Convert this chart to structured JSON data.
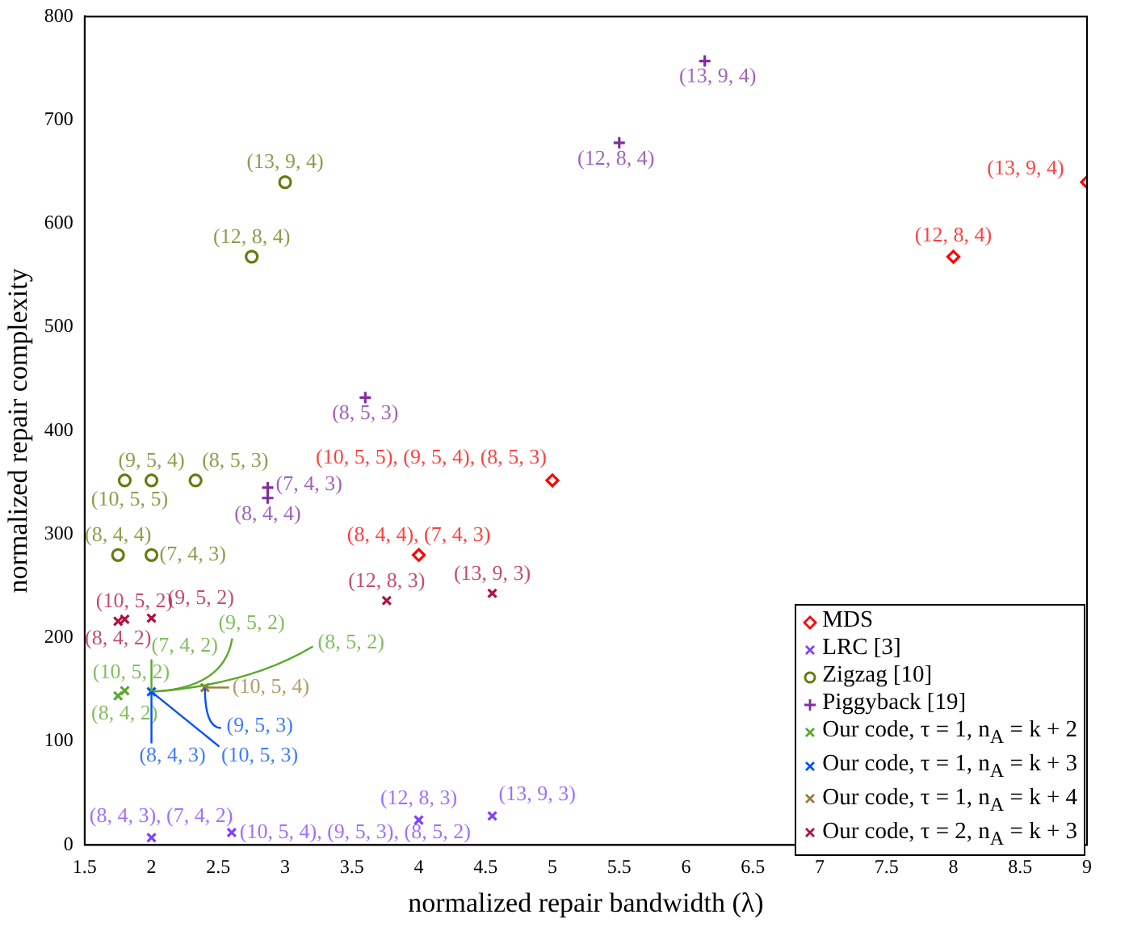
{
  "chart_data": {
    "type": "scatter",
    "xlabel": "normalized repair bandwidth (λ)",
    "ylabel": "normalized repair complexity",
    "xlim": [
      1.5,
      9
    ],
    "xticks": [
      1.5,
      2,
      2.5,
      3,
      3.5,
      4,
      4.5,
      5,
      5.5,
      6,
      6.5,
      7,
      7.5,
      8,
      8.5,
      9
    ],
    "ylim": [
      0,
      800
    ],
    "yticks": [
      0,
      100,
      200,
      300,
      400,
      500,
      600,
      700,
      800
    ],
    "grid": false,
    "legend": "bottom right",
    "series": [
      {
        "name": "MDS",
        "color": "#ff0000",
        "marker": "diamond",
        "x": [
          9,
          8,
          5,
          4
        ],
        "values": [
          640,
          568,
          352,
          280
        ]
      },
      {
        "name": "LRC [3]",
        "color": "#7f3fff",
        "marker": "cross",
        "x": [
          2,
          2.6,
          4,
          4.55
        ],
        "values": [
          7,
          12,
          24,
          28
        ]
      },
      {
        "name": "Zigzag [10]",
        "color": "#6b7a10",
        "marker": "circle",
        "x": [
          3,
          2.75,
          2,
          1.8,
          2.33,
          1.75,
          2
        ],
        "values": [
          640,
          568,
          352,
          352,
          352,
          280,
          280
        ]
      },
      {
        "name": "Piggyback [19]",
        "color": "#7f2f9f",
        "marker": "plus",
        "x": [
          6.14,
          5.5,
          3.6,
          2.87,
          2.87
        ],
        "values": [
          757,
          678,
          432,
          345,
          335
        ]
      },
      {
        "name": "Our code, τ = 1, n$_{A}$ = k + 2",
        "color": "#5aa82a",
        "marker": "cross",
        "x": [
          1.8,
          1.75
        ],
        "values": [
          149,
          144
        ]
      },
      {
        "name": "Our code, τ = 1, n$_{A}$ = k + 3",
        "color": "#0050ff",
        "marker": "cross",
        "x": [
          2
        ],
        "values": [
          148
        ]
      },
      {
        "name": "Our code, τ = 1, n$_{A}$ = k + 4",
        "color": "#9a7a3a",
        "marker": "cross",
        "x": [
          2.4
        ],
        "values": [
          152
        ]
      },
      {
        "name": "Our code, τ = 2, n$_{A}$ = k + 3",
        "color": "#b0103c",
        "marker": "cross",
        "x": [
          1.75,
          1.8,
          2,
          3.76,
          4.55
        ],
        "values": [
          216,
          218,
          219,
          236,
          243
        ]
      }
    ],
    "annotations": [
      {
        "text": "(13, 9, 4)",
        "x": 9,
        "y": 640
      },
      {
        "text": "(12, 8, 4)",
        "x": 8,
        "y": 568
      },
      {
        "text": "(10, 5, 5), (9, 5, 4), (8, 5, 3)",
        "x": 5,
        "y": 352
      },
      {
        "text": "(8, 4, 4), (7, 4, 3)",
        "x": 4,
        "y": 280
      },
      {
        "text": "(8, 4, 3), (7, 4, 2)",
        "x": 2,
        "y": 7
      },
      {
        "text": "(10, 5, 4), (9, 5, 3), (8, 5, 2)",
        "x": 2.6,
        "y": 12
      },
      {
        "text": "(12, 8, 3)",
        "x": 4,
        "y": 24
      },
      {
        "text": "(13, 9, 3)",
        "x": 4.55,
        "y": 28
      },
      {
        "text": "(13, 9, 4)",
        "x": 3,
        "y": 640
      },
      {
        "text": "(12, 8, 4)",
        "x": 2.75,
        "y": 568
      },
      {
        "text": "(9, 5, 4)",
        "x": 2,
        "y": 352
      },
      {
        "text": "(10, 5, 5)",
        "x": 1.8,
        "y": 352
      },
      {
        "text": "(8, 5, 3)",
        "x": 2.33,
        "y": 352
      },
      {
        "text": "(8, 4, 4)",
        "x": 1.75,
        "y": 280
      },
      {
        "text": "(7, 4, 3)",
        "x": 2,
        "y": 280
      },
      {
        "text": "(13, 9, 4)",
        "x": 6.14,
        "y": 757
      },
      {
        "text": "(12, 8, 4)",
        "x": 5.5,
        "y": 678
      },
      {
        "text": "(8, 5, 3)",
        "x": 3.6,
        "y": 432
      },
      {
        "text": "(7, 4, 3)",
        "x": 2.87,
        "y": 345
      },
      {
        "text": "(8, 4, 4)",
        "x": 2.87,
        "y": 335
      },
      {
        "text": "(10, 5, 2)",
        "x": 1.8,
        "y": 149
      },
      {
        "text": "(8, 4, 2)",
        "x": 1.75,
        "y": 144
      },
      {
        "text": "(7, 4, 2)",
        "x": 2,
        "y": 148
      },
      {
        "text": "(9, 5, 2)",
        "x": 2,
        "y": 148
      },
      {
        "text": "(8, 5, 2)",
        "x": 2,
        "y": 148
      },
      {
        "text": "(8, 4, 3)",
        "x": 2,
        "y": 148
      },
      {
        "text": "(10, 5, 3)",
        "x": 2,
        "y": 148
      },
      {
        "text": "(9, 5, 3)",
        "x": 2.4,
        "y": 152
      },
      {
        "text": "(10, 5, 4)",
        "x": 2.4,
        "y": 152
      },
      {
        "text": "(10, 5, 2)",
        "x": 1.8,
        "y": 218
      },
      {
        "text": "(9, 5, 2)",
        "x": 2,
        "y": 219
      },
      {
        "text": "(8, 4, 2)",
        "x": 1.75,
        "y": 216
      },
      {
        "text": "(12, 8, 3)",
        "x": 3.76,
        "y": 236
      },
      {
        "text": "(13, 9, 3)",
        "x": 4.55,
        "y": 243
      }
    ]
  }
}
